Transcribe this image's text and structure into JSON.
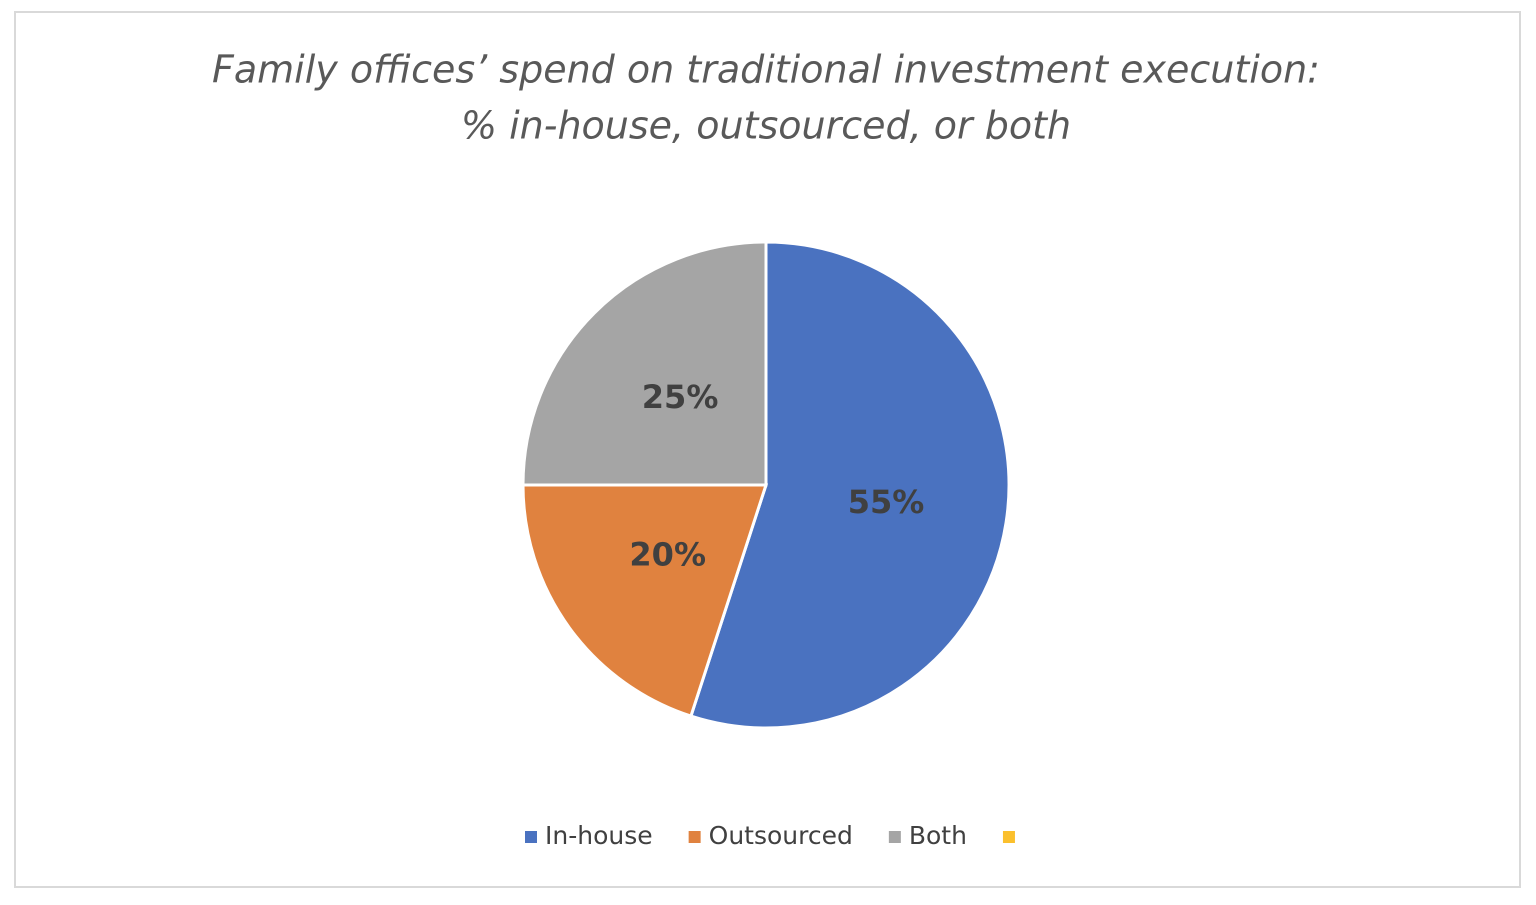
{
  "chart_data": {
    "type": "pie",
    "title": [
      "Family offices’ spend on traditional investment execution:",
      "% in-house, outsourced, or both"
    ],
    "categories": [
      "In-house",
      "Outsourced",
      "Both",
      null
    ],
    "values": [
      55,
      20,
      25,
      0
    ],
    "value_labels": [
      "55%",
      "20%",
      "25%",
      null
    ],
    "colors": [
      "#4a72c0",
      "#e0823f",
      "#a5a5a5",
      "#fbc02d"
    ],
    "start_angle": 0,
    "direction": "clockwise",
    "legend": "bottom"
  }
}
